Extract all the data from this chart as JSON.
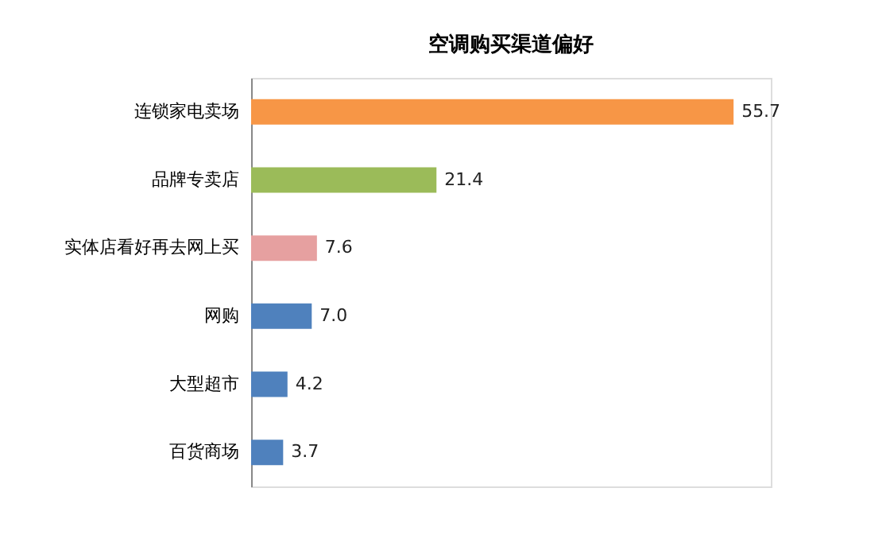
{
  "chart_data": {
    "type": "bar",
    "orientation": "horizontal",
    "title": "空调购买渠道偏好",
    "categories": [
      "连锁家电卖场",
      "品牌专卖店",
      "实体店看好再去网上买",
      "网购",
      "大型超市",
      "百货商场"
    ],
    "values": [
      55.7,
      21.4,
      7.6,
      7.0,
      4.2,
      3.7
    ],
    "colors": [
      "#f79646",
      "#9bbb59",
      "#e6a0a0",
      "#4f81bd",
      "#4f81bd",
      "#4f81bd"
    ],
    "value_labels": [
      "55.7",
      "21.4",
      "7.6",
      "7.0",
      "4.2",
      "3.7"
    ],
    "grid": false
  }
}
